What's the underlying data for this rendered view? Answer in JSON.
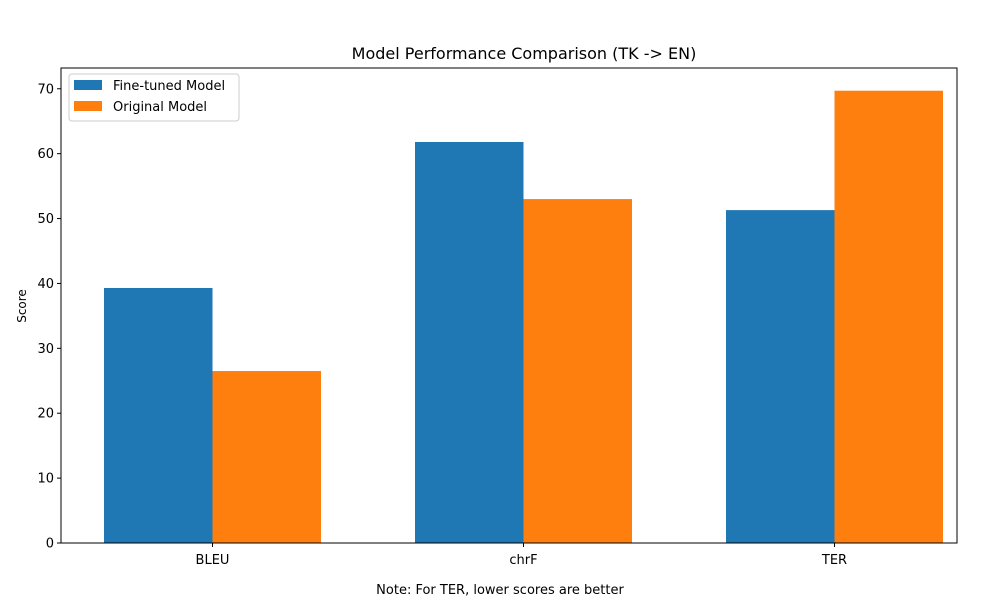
{
  "chart_data": {
    "type": "bar",
    "title": "Model Performance Comparison (TK -> EN)",
    "xlabel": "",
    "ylabel": "Score",
    "categories": [
      "BLEU",
      "chrF",
      "TER"
    ],
    "series": [
      {
        "name": "Fine-tuned Model",
        "color": "#1f77b4",
        "values": [
          39.3,
          61.8,
          51.3
        ]
      },
      {
        "name": "Original Model",
        "color": "#ff7f0e",
        "values": [
          26.5,
          53.0,
          69.7
        ]
      }
    ],
    "ylim": [
      0,
      73.2
    ],
    "yticks": [
      0,
      10,
      20,
      30,
      40,
      50,
      60,
      70
    ],
    "grid": false,
    "legend_position": "top-left",
    "note": "Note: For TER, lower scores are better"
  }
}
